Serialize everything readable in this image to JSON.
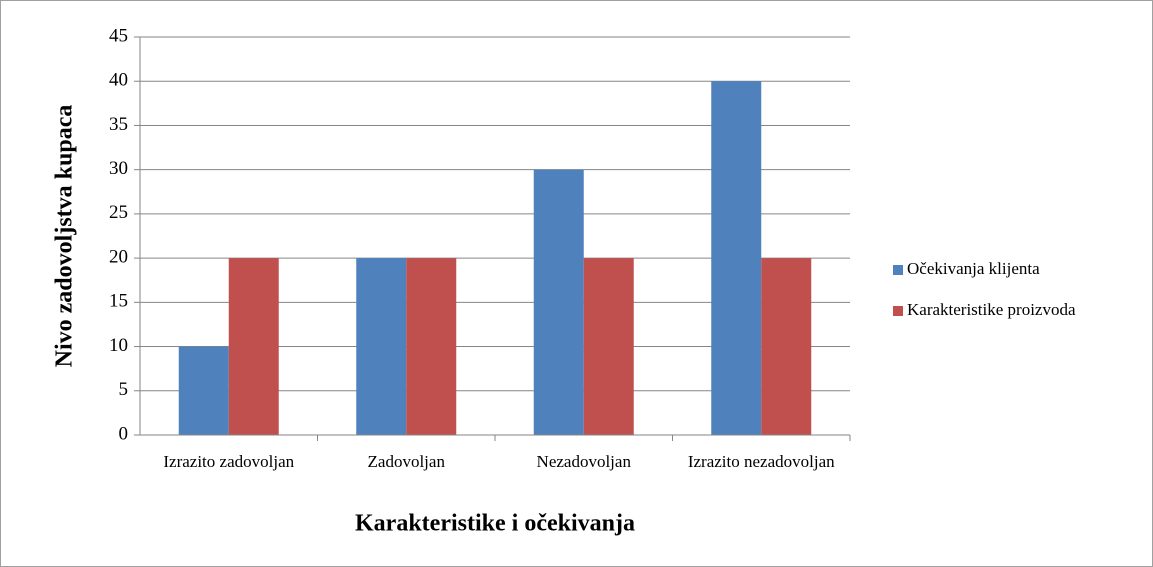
{
  "chart_data": {
    "type": "bar",
    "x_label": "Karakteristike i očekivanja",
    "y_label": "Nivo zadovoljstva kupaca",
    "categories": [
      "Izrazito zadovoljan",
      "Zadovoljan",
      "Nezadovoljan",
      "Izrazito nezadovoljan"
    ],
    "series": [
      {
        "name": "Očekivanja klijenta",
        "color": "#4f81bd",
        "values": [
          10,
          20,
          30,
          40
        ]
      },
      {
        "name": "Karakteristike proizvoda",
        "color": "#c0504d",
        "values": [
          20,
          20,
          20,
          20
        ]
      }
    ],
    "ylim": [
      0,
      45
    ],
    "yticks": [
      0,
      5,
      10,
      15,
      20,
      25,
      30,
      35,
      40,
      45
    ],
    "grid": true,
    "legend": "right"
  }
}
